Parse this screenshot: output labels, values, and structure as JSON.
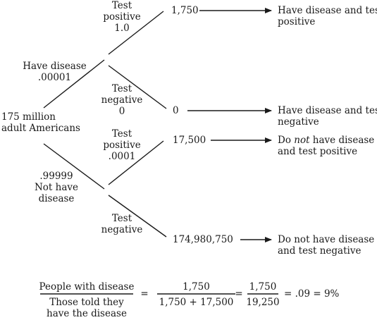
{
  "root": {
    "line1": "175 million",
    "line2": "adult Americans"
  },
  "branch_have": {
    "line1": "Have disease",
    "line2": ".00001"
  },
  "branch_not": {
    "line1": ".99999",
    "line2": "Not have",
    "line3": "disease"
  },
  "sub_have_pos": {
    "line1": "Test",
    "line2": "positive",
    "line3": "1.0"
  },
  "sub_have_neg": {
    "line1": "Test",
    "line2": "negative",
    "line3": "0"
  },
  "sub_not_pos": {
    "line1": "Test",
    "line2": "positive",
    "line3": ".0001"
  },
  "sub_not_neg": {
    "line1": "Test",
    "line2": "negative"
  },
  "counts": {
    "have_pos": "1,750",
    "have_neg": "0",
    "not_pos": "17,500",
    "not_neg": "174,980,750"
  },
  "outcomes": {
    "have_pos": {
      "line1": "Have disease and test",
      "line2": "positive"
    },
    "have_neg": {
      "line1": "Have disease and test",
      "line2": "negative"
    },
    "not_pos": {
      "pre": "Do ",
      "em": "not",
      "post": " have disease",
      "line2": "and test positive"
    },
    "not_neg": {
      "line1": "Do not have disease",
      "line2": "and test negative"
    }
  },
  "formula": {
    "num1": "People with disease",
    "den1_line1": "Those told they",
    "den1_line2": "have the disease",
    "eq1": "=",
    "num2": "1,750",
    "den2": "1,750 + 17,500",
    "eq2": "=",
    "num3": "1,750",
    "den3": "19,250",
    "result": "= .09 = 9%"
  }
}
